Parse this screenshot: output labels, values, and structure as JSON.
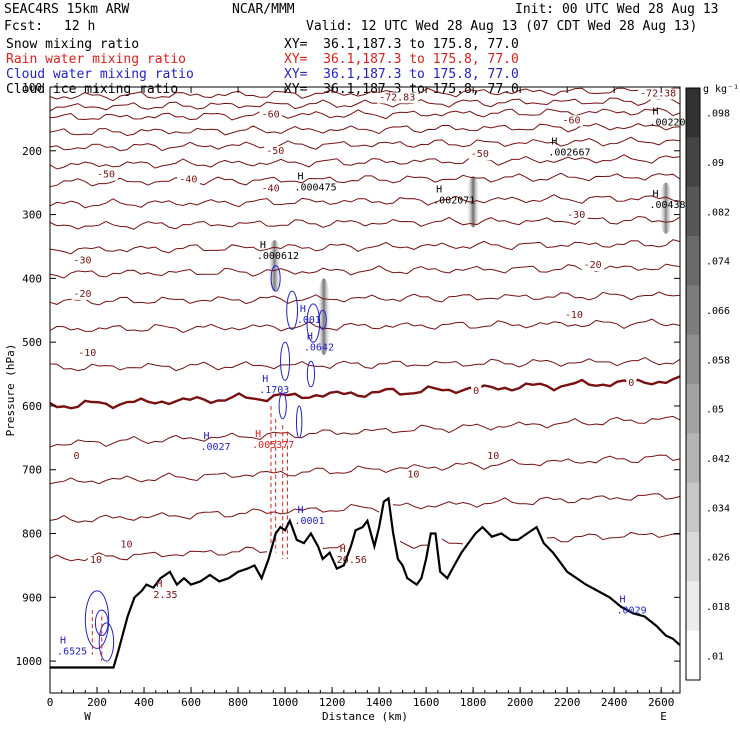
{
  "header": {
    "model": "SEAC4RS 15km ARW",
    "center": "NCAR/MMM",
    "init": "Init: 00 UTC Wed 28 Aug 13",
    "fcst_label": "Fcst:",
    "fcst_value": "12 h",
    "valid": "Valid: 12 UTC Wed 28 Aug 13 (07 CDT Wed 28 Aug 13)",
    "fields": [
      {
        "name": "Snow mixing ratio",
        "xy": "XY=  36.1,187.3 to 175.8, 77.0",
        "color": "#000000"
      },
      {
        "name": "Rain water mixing ratio",
        "xy": "XY=  36.1,187.3 to 175.8, 77.0",
        "color": "#e0201b"
      },
      {
        "name": "Cloud water mixing ratio",
        "xy": "XY=  36.1,187.3 to 175.8, 77.0",
        "color": "#2222cc"
      },
      {
        "name": "Cloud ice mixing ratio",
        "xy": "XY=  36.1,187.3 to 175.8, 77.0",
        "color": "#000000"
      }
    ]
  },
  "chart_data": {
    "type": "cross-section",
    "xlabel": "Distance (km)",
    "ylabel": "Pressure (hPa)",
    "xlim": [
      0,
      2680
    ],
    "ylim": [
      1050,
      100
    ],
    "xticks": [
      0,
      200,
      400,
      600,
      800,
      1000,
      1200,
      1400,
      1600,
      1800,
      2000,
      2200,
      2400,
      2600
    ],
    "yticks": [
      100,
      200,
      300,
      400,
      500,
      600,
      700,
      800,
      900,
      1000
    ],
    "end_labels": {
      "left": "W",
      "right": "E"
    },
    "colorbar": {
      "unit": "g kg⁻¹",
      "ticks": [
        "-",
        ".098",
        ".09",
        ".082",
        ".074",
        ".066",
        ".058",
        ".05",
        ".042",
        ".034",
        ".026",
        ".018",
        ".01"
      ]
    },
    "isotherms": [
      {
        "t": -70,
        "p": 115
      },
      {
        "t": -60,
        "p": 148
      },
      {
        "t": -50,
        "p": 195
      },
      {
        "t": -40,
        "p": 250
      },
      {
        "t": -30,
        "p": 318
      },
      {
        "t": -20,
        "p": 393
      },
      {
        "t": -10,
        "p": 480
      },
      {
        "t": 0,
        "p": 600
      },
      {
        "t": 10,
        "p": 720
      }
    ],
    "contour_labels": [
      {
        "text": "-72.83",
        "x": 1400,
        "p": 121,
        "color": "#7a1010"
      },
      {
        "text": "-72.38",
        "x": 2510,
        "p": 115,
        "color": "#7a1010"
      },
      {
        "text": "-60",
        "x": 900,
        "p": 148,
        "color": "#7a1010"
      },
      {
        "text": "-60",
        "x": 2180,
        "p": 157,
        "color": "#7a1010"
      },
      {
        "text": "-50",
        "x": 200,
        "p": 242,
        "color": "#7a1010"
      },
      {
        "text": "-50",
        "x": 920,
        "p": 205,
        "color": "#7a1010"
      },
      {
        "text": "-50",
        "x": 1790,
        "p": 210,
        "color": "#7a1010"
      },
      {
        "text": "-40",
        "x": 900,
        "p": 264,
        "color": "#7a1010"
      },
      {
        "text": "-40",
        "x": 550,
        "p": 250,
        "color": "#7a1010"
      },
      {
        "text": "-30",
        "x": 100,
        "p": 377,
        "color": "#7a1010"
      },
      {
        "text": "-30",
        "x": 2200,
        "p": 305,
        "color": "#7a1010"
      },
      {
        "text": "-20",
        "x": 100,
        "p": 429,
        "color": "#7a1010"
      },
      {
        "text": "-20",
        "x": 2270,
        "p": 384,
        "color": "#7a1010"
      },
      {
        "text": "-10",
        "x": 120,
        "p": 522,
        "color": "#7a1010"
      },
      {
        "text": "-10",
        "x": 2190,
        "p": 462,
        "color": "#7a1010"
      },
      {
        "text": "0",
        "x": 100,
        "p": 683,
        "color": "#7a1010"
      },
      {
        "text": "0",
        "x": 1800,
        "p": 581,
        "color": "#7a1010"
      },
      {
        "text": "0",
        "x": 2460,
        "p": 569,
        "color": "#7a1010"
      },
      {
        "text": "10",
        "x": 170,
        "p": 846,
        "color": "#7a1010"
      },
      {
        "text": "10",
        "x": 1520,
        "p": 712,
        "color": "#7a1010"
      },
      {
        "text": "10",
        "x": 1860,
        "p": 683,
        "color": "#7a1010"
      },
      {
        "text": "10",
        "x": 300,
        "p": 822,
        "color": "#7a1010"
      }
    ],
    "extrema": [
      {
        "text": ".000475",
        "x": 1040,
        "p": 262,
        "color": "#000000"
      },
      {
        "text": ".000612",
        "x": 880,
        "p": 370,
        "color": "#000000"
      },
      {
        "text": ".002071",
        "x": 1630,
        "p": 283,
        "color": "#000000"
      },
      {
        "text": ".002667",
        "x": 2120,
        "p": 207,
        "color": "#000000"
      },
      {
        "text": ".00220",
        "x": 2550,
        "p": 160,
        "color": "#000000"
      },
      {
        "text": ".00438",
        "x": 2550,
        "p": 290,
        "color": "#000000"
      },
      {
        "text": ".001",
        "x": 1050,
        "p": 470,
        "color": "#2222cc"
      },
      {
        "text": ".0642",
        "x": 1080,
        "p": 513,
        "color": "#2222cc"
      },
      {
        "text": ".1703",
        "x": 890,
        "p": 580,
        "color": "#2222cc"
      },
      {
        "text": ".0027",
        "x": 640,
        "p": 669,
        "color": "#2222cc"
      },
      {
        "text": ".005377",
        "x": 860,
        "p": 666,
        "color": "#e0201b"
      },
      {
        "text": ".0001",
        "x": 1040,
        "p": 785,
        "color": "#2222cc"
      },
      {
        "text": "20.56",
        "x": 1220,
        "p": 846,
        "color": "#7a1010"
      },
      {
        "text": ".0029",
        "x": 2410,
        "p": 925,
        "color": "#2222cc"
      },
      {
        "text": "2.35",
        "x": 440,
        "p": 901,
        "color": "#7a1010"
      },
      {
        "text": ".6525",
        "x": 30,
        "p": 990,
        "color": "#2222cc"
      }
    ],
    "terrain": [
      [
        0,
        1010
      ],
      [
        270,
        1010
      ],
      [
        290,
        985
      ],
      [
        330,
        930
      ],
      [
        360,
        900
      ],
      [
        390,
        890
      ],
      [
        410,
        880
      ],
      [
        440,
        885
      ],
      [
        470,
        870
      ],
      [
        510,
        860
      ],
      [
        540,
        880
      ],
      [
        570,
        870
      ],
      [
        600,
        880
      ],
      [
        640,
        875
      ],
      [
        680,
        865
      ],
      [
        720,
        875
      ],
      [
        760,
        870
      ],
      [
        800,
        860
      ],
      [
        840,
        855
      ],
      [
        870,
        850
      ],
      [
        900,
        870
      ],
      [
        930,
        840
      ],
      [
        960,
        800
      ],
      [
        980,
        790
      ],
      [
        1000,
        795
      ],
      [
        1020,
        780
      ],
      [
        1050,
        810
      ],
      [
        1080,
        815
      ],
      [
        1110,
        800
      ],
      [
        1140,
        820
      ],
      [
        1160,
        840
      ],
      [
        1190,
        830
      ],
      [
        1220,
        855
      ],
      [
        1250,
        850
      ],
      [
        1280,
        820
      ],
      [
        1300,
        795
      ],
      [
        1330,
        790
      ],
      [
        1350,
        780
      ],
      [
        1380,
        820
      ],
      [
        1400,
        790
      ],
      [
        1420,
        750
      ],
      [
        1440,
        745
      ],
      [
        1460,
        800
      ],
      [
        1480,
        840
      ],
      [
        1500,
        850
      ],
      [
        1520,
        870
      ],
      [
        1540,
        875
      ],
      [
        1560,
        880
      ],
      [
        1580,
        870
      ],
      [
        1600,
        840
      ],
      [
        1620,
        800
      ],
      [
        1640,
        800
      ],
      [
        1660,
        860
      ],
      [
        1690,
        870
      ],
      [
        1720,
        850
      ],
      [
        1750,
        830
      ],
      [
        1780,
        815
      ],
      [
        1810,
        800
      ],
      [
        1840,
        790
      ],
      [
        1880,
        805
      ],
      [
        1920,
        800
      ],
      [
        1960,
        810
      ],
      [
        1990,
        810
      ],
      [
        2030,
        800
      ],
      [
        2070,
        790
      ],
      [
        2100,
        815
      ],
      [
        2140,
        830
      ],
      [
        2170,
        845
      ],
      [
        2200,
        860
      ],
      [
        2240,
        870
      ],
      [
        2280,
        880
      ],
      [
        2330,
        890
      ],
      [
        2380,
        900
      ],
      [
        2430,
        915
      ],
      [
        2480,
        925
      ],
      [
        2530,
        930
      ],
      [
        2580,
        945
      ],
      [
        2620,
        960
      ],
      [
        2650,
        965
      ],
      [
        2680,
        975
      ]
    ],
    "snow_columns": [
      {
        "x": 1800,
        "p_top": 240,
        "p_bot": 320,
        "val": 0.06
      },
      {
        "x": 1165,
        "p_top": 400,
        "p_bot": 520,
        "val": 0.05
      },
      {
        "x": 955,
        "p_top": 340,
        "p_bot": 420,
        "val": 0.04
      },
      {
        "x": 2620,
        "p_top": 250,
        "p_bot": 330,
        "val": 0.03
      }
    ]
  }
}
